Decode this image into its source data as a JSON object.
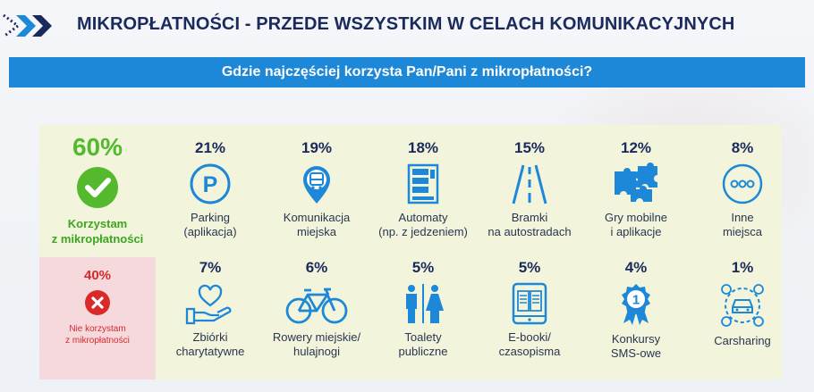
{
  "header": {
    "title": "MIKROPŁATNOŚCI - PRZEDE WSZYSTKIM W CELACH KOMUNIKACYJNYCH",
    "question": "Gdzie najczęściej korzysta Pan/Pani z mikropłatności?"
  },
  "colors": {
    "accent_blue": "#1e88d8",
    "title_navy": "#1b2a5c",
    "positive_green": "#55b92e",
    "negative_red": "#d92a2a",
    "panel_green": "#f2f5dc",
    "panel_pink": "#f6d9dc"
  },
  "summary": {
    "yes": {
      "pct": "60%",
      "label": "Korzystam\nz mikropłatności",
      "icon": "checkmark-circle-icon"
    },
    "no": {
      "pct": "40%",
      "label": "Nie korzystam\nz mikropłatności",
      "icon": "x-circle-icon"
    }
  },
  "items_row1": [
    {
      "pct": "21%",
      "label": "Parking\n(aplikacja)",
      "icon": "parking-icon"
    },
    {
      "pct": "19%",
      "label": "Komunikacja\nmiejska",
      "icon": "bus-pin-icon"
    },
    {
      "pct": "18%",
      "label": "Automaty\n(np. z jedzeniem)",
      "icon": "vending-machine-icon"
    },
    {
      "pct": "15%",
      "label": "Bramki\nna autostradach",
      "icon": "highway-icon"
    },
    {
      "pct": "12%",
      "label": "Gry mobilne\ni aplikacje",
      "icon": "puzzle-icon"
    },
    {
      "pct": "8%",
      "label": "Inne\nmiejsca",
      "icon": "more-dots-icon"
    }
  ],
  "items_row2": [
    {
      "pct": "7%",
      "label": "Zbiórki\ncharytatywne",
      "icon": "charity-heart-hand-icon"
    },
    {
      "pct": "6%",
      "label": "Rowery miejskie/\nhulajnogi",
      "icon": "bicycle-icon"
    },
    {
      "pct": "5%",
      "label": "Toalety\npubliczne",
      "icon": "toilet-icon"
    },
    {
      "pct": "5%",
      "label": "E-booki/\nczasopisma",
      "icon": "ebook-reader-icon"
    },
    {
      "pct": "4%",
      "label": "Konkursy\nSMS-owe",
      "icon": "award-badge-icon"
    },
    {
      "pct": "1%",
      "label": "Carsharing",
      "icon": "carsharing-icon"
    }
  ]
}
